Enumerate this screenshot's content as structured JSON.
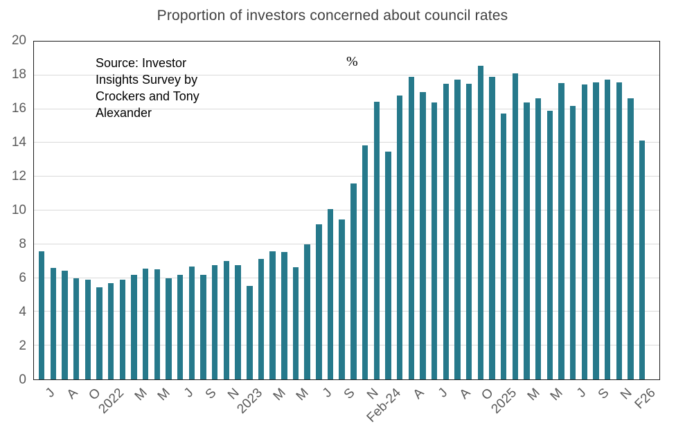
{
  "page_title": "Proportion of investors concerned about council rates",
  "colors": {
    "bar": "#26798b",
    "grid": "#d9d9d9",
    "axis_text": "#595959",
    "title_text": "#404040",
    "plot_border": "#1a1a1a",
    "background": "#ffffff"
  },
  "chart_data": {
    "type": "bar",
    "title": "Proportion of investors concerned about council rates",
    "unit_label": "%",
    "source_lines": [
      "Source: Investor",
      "Insights Survey by",
      "Crockers and Tony",
      "Alexander"
    ],
    "xlabel": "",
    "ylabel": "",
    "ylim": [
      0,
      20
    ],
    "y_ticks": [
      0,
      2,
      4,
      6,
      8,
      10,
      12,
      14,
      16,
      18,
      20
    ],
    "grid": true,
    "legend": false,
    "x_tick_every_n_bars": 2,
    "x_tick_labels": [
      "J",
      "A",
      "O",
      "2022",
      "M",
      "M",
      "J",
      "S",
      "N",
      "2023",
      "M",
      "M",
      "J",
      "S",
      "N",
      "Feb-24",
      "A",
      "J",
      "A",
      "O",
      "2025",
      "M",
      "M",
      "J",
      "S",
      "N",
      "F26"
    ],
    "values": [
      7.6,
      6.6,
      6.45,
      6.0,
      5.9,
      5.45,
      5.7,
      5.9,
      6.2,
      6.55,
      6.5,
      6.0,
      6.2,
      6.7,
      6.2,
      6.75,
      7.0,
      6.75,
      5.55,
      7.15,
      7.6,
      7.55,
      6.65,
      8.0,
      9.2,
      10.1,
      9.45,
      11.6,
      13.85,
      16.45,
      13.5,
      16.8,
      17.9,
      17.0,
      16.4,
      17.5,
      17.75,
      17.5,
      18.55,
      17.9,
      15.75,
      18.1,
      16.4,
      16.65,
      15.9,
      17.55,
      16.2,
      17.45,
      17.6,
      17.75,
      17.6,
      16.65,
      14.15
    ]
  }
}
